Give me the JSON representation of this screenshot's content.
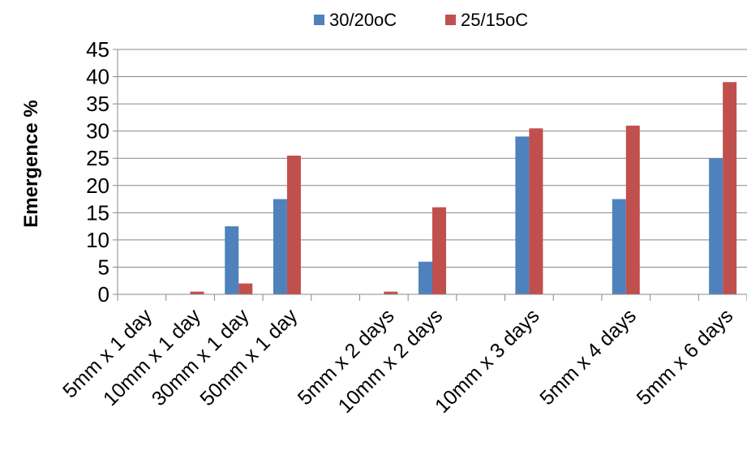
{
  "chart_data": {
    "type": "bar",
    "title": "",
    "xlabel": "",
    "ylabel": "Emergence %",
    "ylim": [
      0,
      45
    ],
    "ytick_step": 5,
    "grid": true,
    "legend_position": "top",
    "categories": [
      "5mm x 1 day",
      "10mm x 1 day",
      "30mm x 1 day",
      "50mm x 1 day",
      "",
      "5mm x 2 days",
      "10mm x 2 days",
      "",
      "10mm x 3 days",
      "",
      "5mm x 4 days",
      "",
      "5mm x 6 days"
    ],
    "series": [
      {
        "name": "30/20oC",
        "color": "#4F81BD",
        "values": [
          0,
          0,
          12.5,
          17.5,
          null,
          0,
          6,
          null,
          29,
          null,
          17.5,
          null,
          25
        ]
      },
      {
        "name": "25/15oC",
        "color": "#C0504D",
        "values": [
          0,
          0.5,
          2,
          25.5,
          null,
          0.5,
          16,
          null,
          30.5,
          null,
          31,
          null,
          39
        ]
      }
    ]
  }
}
